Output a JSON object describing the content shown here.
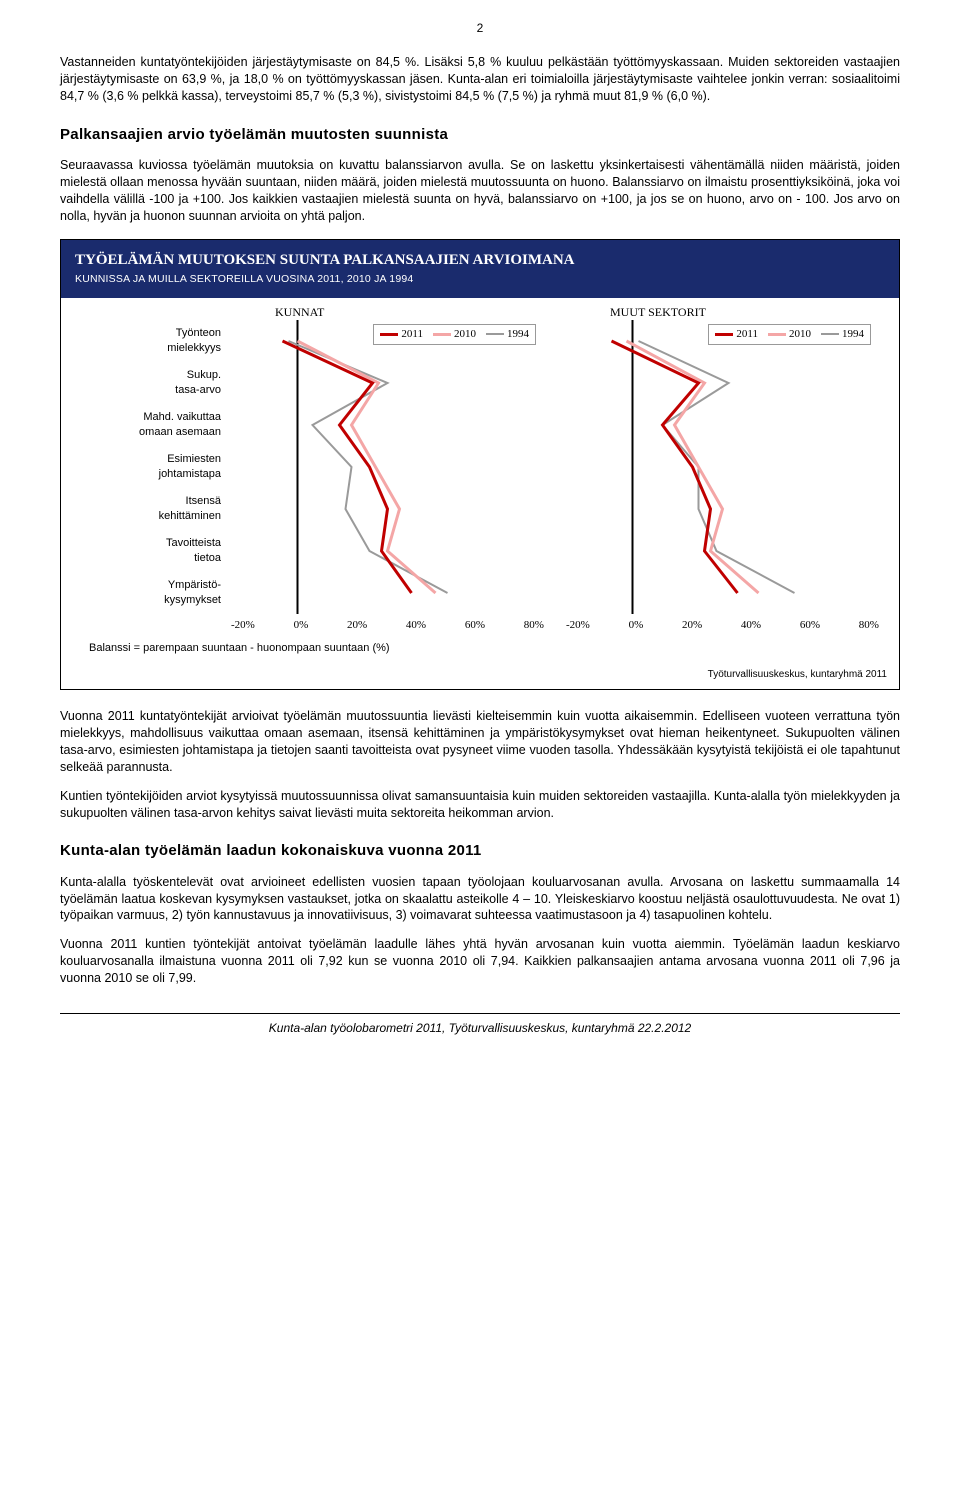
{
  "page_number": "2",
  "para1": "Vastanneiden kuntatyöntekijöiden järjestäytymisaste on 84,5 %. Lisäksi 5,8 % kuuluu pelkästään työttömyyskassaan. Muiden sektoreiden vastaajien järjestäytymisaste on 63,9 %, ja 18,0 % on työttömyyskassan jäsen. Kunta-alan eri toimialoilla järjestäytymisaste vaihtelee jonkin verran: sosiaalitoimi 84,7 % (3,6 % pelkkä kassa), terveystoimi 85,7 % (5,3 %), sivistystoimi 84,5 % (7,5 %) ja ryhmä muut 81,9 % (6,0 %).",
  "h2a": "Palkansaajien arvio työelämän muutosten suunnista",
  "para2": "Seuraavassa kuviossa työelämän muutoksia on kuvattu balanssiarvon avulla. Se on laskettu yksinkertaisesti vähentämällä niiden määristä, joiden mielestä ollaan menossa hyvään suuntaan, niiden määrä, joiden mielestä muutossuunta on huono. Balanssiarvo on ilmaistu prosenttiyksiköinä, joka voi vaihdella välillä -100 ja +100. Jos kaikkien vastaajien mielestä suunta on hyvä, balanssiarvo on +100, ja jos se on huono, arvo on - 100. Jos arvo on nolla, hyvän ja huonon suunnan arvioita on yhtä paljon.",
  "chart": {
    "title_main": "TYÖELÄMÄN MUUTOKSEN SUUNTA PALKANSAAJIEN ARVIOIMANA",
    "title_sub": "KUNNISSA JA MUILLA SEKTOREILLA VUOSINA 2011, 2010 JA 1994",
    "row_labels": [
      [
        "Työnteon",
        "mielekkyys"
      ],
      [
        "Sukup.",
        "tasa-arvo"
      ],
      [
        "Mahd. vaikuttaa",
        "omaan asemaan"
      ],
      [
        "Esimiesten",
        "johtamistapa"
      ],
      [
        "Itsensä",
        "kehittäminen"
      ],
      [
        "Tavoitteista",
        "tietoa"
      ],
      [
        "Ympäristö-",
        "kysymykset"
      ]
    ],
    "panels": [
      {
        "title": "KUNNAT"
      },
      {
        "title": "MUUT SEKTORIT"
      }
    ],
    "legend": [
      {
        "label": "2011",
        "color": "#c00000",
        "width": 3
      },
      {
        "label": "2010",
        "color": "#f4a6a6",
        "width": 3
      },
      {
        "label": "1994",
        "color": "#9a9a9a",
        "width": 2
      }
    ],
    "xticks": [
      "-20%",
      "0%",
      "20%",
      "40%",
      "60%",
      "80%"
    ],
    "xlim": [
      -20,
      80
    ],
    "colors": {
      "bg": "#ffffff",
      "axis": "#000000"
    },
    "series": {
      "kunnat": {
        "s2011": [
          -5,
          25,
          14,
          24,
          30,
          28,
          38
        ],
        "s2010": [
          0,
          27,
          18,
          26,
          34,
          30,
          46
        ],
        "s1994": [
          -3,
          30,
          5,
          18,
          16,
          24,
          50
        ]
      },
      "muut": {
        "s2011": [
          -7,
          22,
          10,
          20,
          26,
          24,
          35
        ],
        "s2010": [
          -2,
          24,
          14,
          22,
          30,
          26,
          42
        ],
        "s1994": [
          2,
          32,
          10,
          22,
          22,
          28,
          54
        ]
      }
    },
    "balanssi_note": "Balanssi = parempaan suuntaan - huonompaan suuntaan (%)",
    "src": "Työturvallisuuskeskus, kuntaryhmä 2011"
  },
  "para3": "Vuonna 2011 kuntatyöntekijät arvioivat työelämän muutossuuntia lievästi kielteisemmin kuin vuotta aikaisemmin. Edelliseen vuoteen verrattuna työn mielekkyys, mahdollisuus vaikuttaa omaan asemaan, itsensä kehittäminen ja ympäristökysymykset ovat hieman heikentyneet. Sukupuolten välinen tasa-arvo, esimiesten johtamistapa ja tietojen saanti tavoitteista ovat pysyneet viime vuoden tasolla. Yhdessäkään kysytyistä tekijöistä ei ole tapahtunut selkeää parannusta.",
  "para4": "Kuntien työntekijöiden arviot kysytyissä muutossuunnissa olivat samansuuntaisia kuin muiden sektoreiden vastaajilla. Kunta-alalla työn mielekkyyden ja sukupuolten välinen tasa-arvon kehitys saivat lievästi muita sektoreita heikomman arvion.",
  "h2b": "Kunta-alan työelämän laadun kokonaiskuva vuonna 2011",
  "para5": "Kunta-alalla työskentelevät ovat arvioineet edellisten vuosien tapaan työolojaan kouluarvosanan avulla. Arvosana on laskettu summaamalla 14 työelämän laatua koskevan kysymyksen vastaukset, jotka on skaalattu asteikolle 4 – 10. Yleiskeskiarvo koostuu neljästä osaulottuvuudesta. Ne ovat 1) työpaikan varmuus, 2) työn kannustavuus ja innovatiivisuus, 3) voimavarat suhteessa vaatimustasoon ja 4) tasapuolinen kohtelu.",
  "para6": "Vuonna 2011 kuntien työntekijät antoivat työelämän laadulle lähes yhtä hyvän arvosanan kuin vuotta aiemmin. Työelämän laadun keskiarvo kouluarvosanalla ilmaistuna vuonna 2011 oli 7,92 kun se vuonna 2010 oli 7,94. Kaikkien palkansaajien antama arvosana vuonna 2011 oli 7,96 ja vuonna 2010 se oli 7,99.",
  "footer": "Kunta-alan työolobarometri 2011, Työturvallisuuskeskus, kuntaryhmä 22.2.2012"
}
